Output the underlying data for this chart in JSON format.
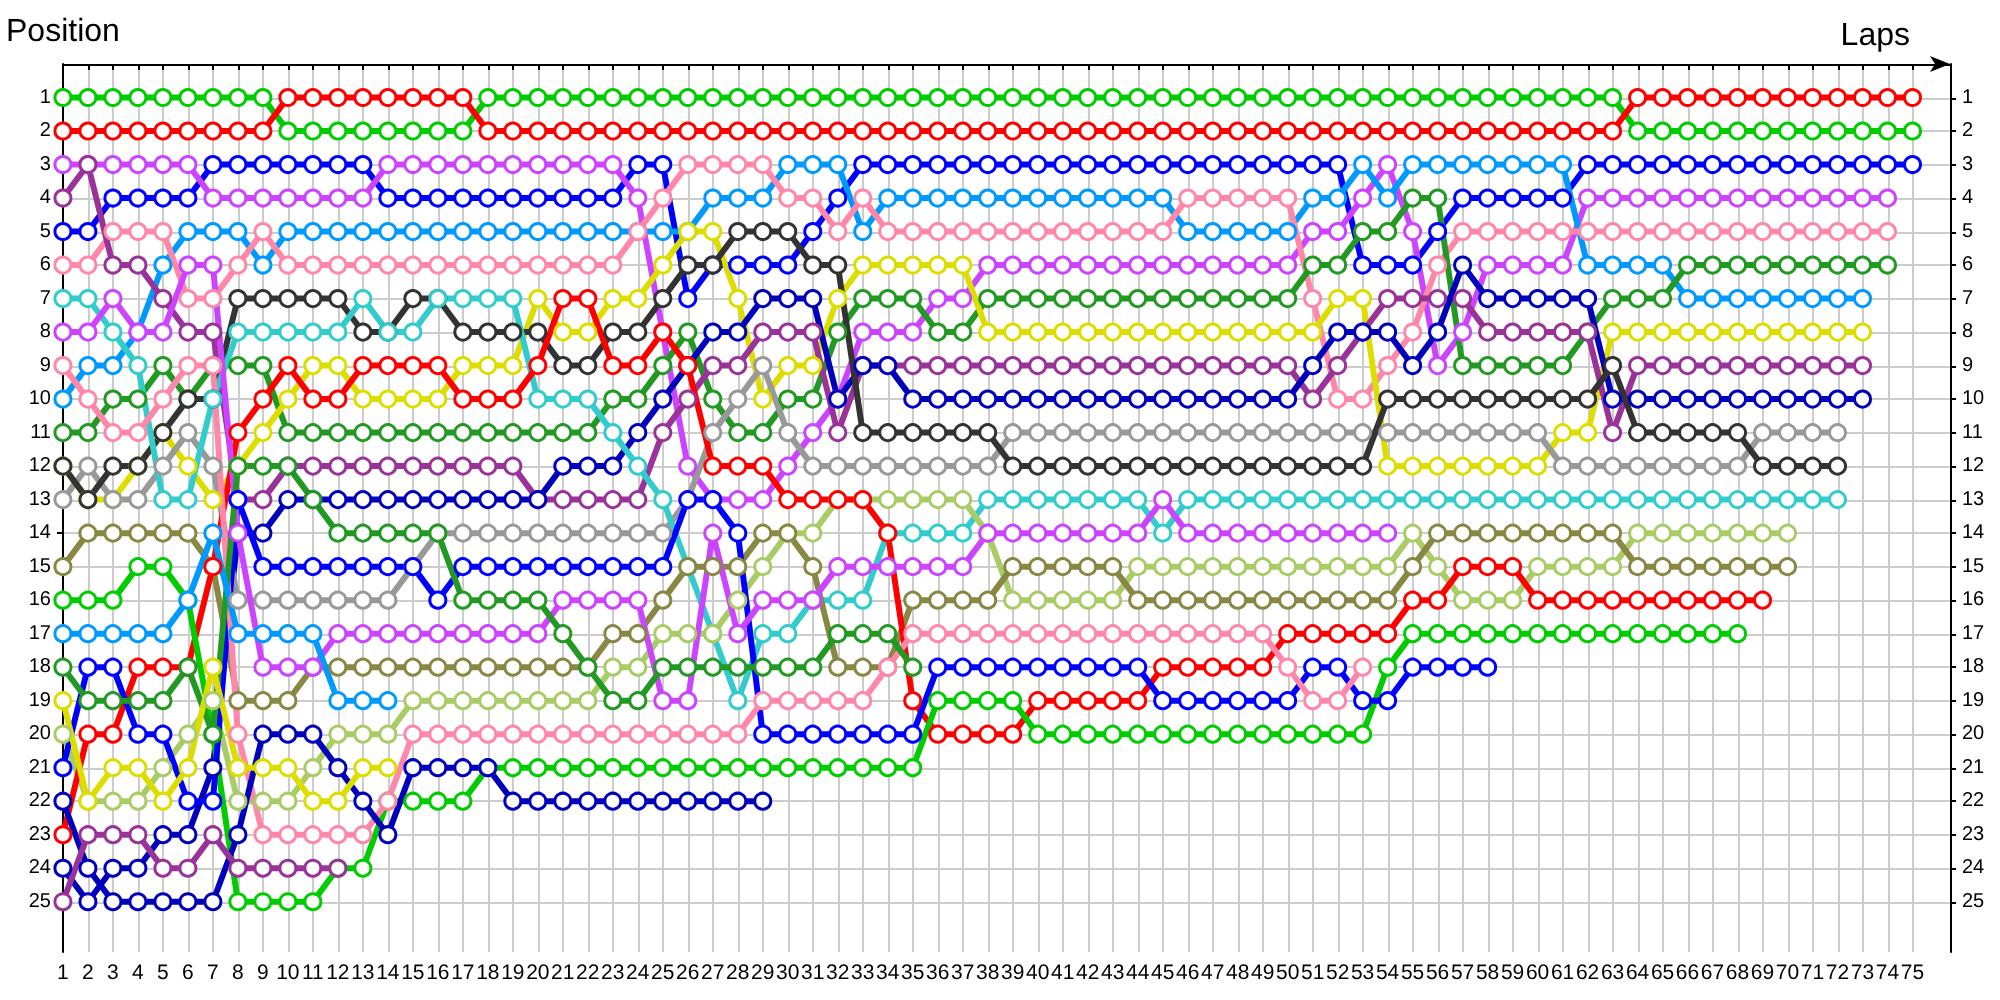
{
  "chart_data": {
    "type": "line",
    "xlabel": "Laps",
    "ylabel": "Position",
    "x": [
      1,
      2,
      3,
      4,
      5,
      6,
      7,
      8,
      9,
      10,
      11,
      12,
      13,
      14,
      15,
      16,
      17,
      18,
      19,
      20,
      21,
      22,
      23,
      24,
      25,
      26,
      27,
      28,
      29,
      30,
      31,
      32,
      33,
      34,
      35,
      36,
      37,
      38,
      39,
      40,
      41,
      42,
      43,
      44,
      45,
      46,
      47,
      48,
      49,
      50,
      51,
      52,
      53,
      54,
      55,
      56,
      57,
      58,
      59,
      60,
      61,
      62,
      63,
      64,
      65,
      66,
      67,
      68,
      69,
      70,
      71,
      72,
      73,
      74,
      75
    ],
    "xlim": [
      1,
      76.5
    ],
    "xticks": [
      1,
      2,
      3,
      4,
      5,
      6,
      7,
      8,
      9,
      10,
      11,
      12,
      13,
      14,
      15,
      16,
      17,
      18,
      19,
      20,
      21,
      22,
      23,
      24,
      25,
      26,
      27,
      28,
      29,
      30,
      31,
      32,
      33,
      34,
      35,
      36,
      37,
      38,
      39,
      40,
      41,
      42,
      43,
      44,
      45,
      46,
      47,
      48,
      49,
      50,
      51,
      52,
      53,
      54,
      55,
      56,
      57,
      58,
      59,
      60,
      61,
      62,
      63,
      64,
      65,
      66,
      67,
      68,
      69,
      70,
      71,
      72,
      73,
      74,
      75
    ],
    "ylim": [
      26.5,
      0
    ],
    "yticks": [
      1,
      2,
      3,
      4,
      5,
      6,
      7,
      8,
      9,
      10,
      11,
      12,
      13,
      14,
      15,
      16,
      17,
      18,
      19,
      20,
      21,
      22,
      23,
      24,
      25
    ],
    "y2lim": [
      26.5,
      0
    ],
    "y2ticks": [
      1,
      2,
      3,
      4,
      5,
      6,
      7,
      8,
      9,
      10,
      11,
      12,
      13,
      14,
      15,
      16,
      17,
      18,
      19,
      20,
      21,
      22,
      23,
      24,
      25
    ],
    "grid": true,
    "marker": "circle",
    "line_style": "solid",
    "series": [
      {
        "color": "#00cc00",
        "values": [
          1,
          1,
          1,
          1,
          1,
          1,
          1,
          1,
          1,
          2,
          2,
          2,
          2,
          2,
          2,
          2,
          2,
          1,
          1,
          1,
          1,
          1,
          1,
          1,
          1,
          1,
          1,
          1,
          1,
          1,
          1,
          1,
          1,
          1,
          1,
          1,
          1,
          1,
          1,
          1,
          1,
          1,
          1,
          1,
          1,
          1,
          1,
          1,
          1,
          1,
          1,
          1,
          1,
          1,
          1,
          1,
          1,
          1,
          1,
          1,
          1,
          1,
          1,
          2,
          2,
          2,
          2,
          2,
          2,
          2,
          2,
          2,
          2,
          2,
          2
        ]
      },
      {
        "color": "#ff0000",
        "values": [
          2,
          2,
          2,
          2,
          2,
          2,
          2,
          2,
          2,
          1,
          1,
          1,
          1,
          1,
          1,
          1,
          1,
          2,
          2,
          2,
          2,
          2,
          2,
          2,
          2,
          2,
          2,
          2,
          2,
          2,
          2,
          2,
          2,
          2,
          2,
          2,
          2,
          2,
          2,
          2,
          2,
          2,
          2,
          2,
          2,
          2,
          2,
          2,
          2,
          2,
          2,
          2,
          2,
          2,
          2,
          2,
          2,
          2,
          2,
          2,
          2,
          2,
          2,
          1,
          1,
          1,
          1,
          1,
          1,
          1,
          1,
          1,
          1,
          1,
          1
        ]
      },
      {
        "color": "#0000ff",
        "values": [
          5,
          5,
          4,
          4,
          4,
          4,
          3,
          3,
          3,
          3,
          3,
          3,
          3,
          4,
          4,
          4,
          4,
          4,
          4,
          4,
          4,
          4,
          4,
          3,
          3,
          7,
          6,
          6,
          6,
          6,
          5,
          4,
          3,
          3,
          3,
          3,
          3,
          3,
          3,
          3,
          3,
          3,
          3,
          3,
          3,
          3,
          3,
          3,
          3,
          3,
          3,
          3,
          6,
          6,
          6,
          5,
          4,
          4,
          4,
          4,
          4,
          3,
          3,
          3,
          3,
          3,
          3,
          3,
          3,
          3,
          3,
          3,
          3,
          3,
          3
        ]
      },
      {
        "color": "#cc44ff",
        "values": [
          3,
          3,
          3,
          3,
          3,
          3,
          4,
          4,
          4,
          4,
          4,
          4,
          4,
          3,
          3,
          3,
          3,
          3,
          3,
          3,
          3,
          3,
          3,
          4,
          8,
          12,
          13,
          13,
          13,
          12,
          11,
          10,
          8,
          8,
          8,
          7,
          7,
          6,
          6,
          6,
          6,
          6,
          6,
          6,
          6,
          6,
          6,
          6,
          6,
          6,
          5,
          5,
          4,
          3,
          5,
          9,
          8,
          6,
          6,
          6,
          6,
          4,
          4,
          4,
          4,
          4,
          4,
          4,
          4,
          4,
          4,
          4,
          4,
          4,
          null
        ]
      },
      {
        "color": "#0099ff",
        "values": [
          10,
          9,
          9,
          8,
          6,
          5,
          5,
          5,
          6,
          5,
          5,
          5,
          5,
          5,
          5,
          5,
          5,
          5,
          5,
          5,
          5,
          5,
          5,
          5,
          5,
          5,
          4,
          4,
          4,
          3,
          3,
          3,
          5,
          4,
          4,
          4,
          4,
          4,
          4,
          4,
          4,
          4,
          4,
          4,
          4,
          5,
          5,
          5,
          5,
          5,
          4,
          4,
          3,
          4,
          3,
          3,
          3,
          3,
          3,
          3,
          3,
          6,
          6,
          6,
          6,
          7,
          7,
          7,
          7,
          7,
          7,
          7,
          7,
          null,
          null
        ]
      },
      {
        "color": "#ff88aa",
        "values": [
          6,
          6,
          5,
          5,
          5,
          7,
          7,
          6,
          5,
          6,
          6,
          6,
          6,
          6,
          6,
          6,
          6,
          6,
          6,
          6,
          6,
          6,
          6,
          5,
          4,
          3,
          3,
          3,
          3,
          4,
          4,
          5,
          4,
          5,
          5,
          5,
          5,
          5,
          5,
          5,
          5,
          5,
          5,
          5,
          5,
          4,
          4,
          4,
          4,
          4,
          7,
          10,
          10,
          9,
          8,
          6,
          5,
          5,
          5,
          5,
          5,
          5,
          5,
          5,
          5,
          5,
          5,
          5,
          5,
          5,
          5,
          5,
          5,
          5,
          null
        ]
      },
      {
        "color": "#229922",
        "values": [
          11,
          11,
          10,
          10,
          9,
          10,
          9,
          9,
          9,
          11,
          11,
          11,
          11,
          11,
          11,
          11,
          11,
          11,
          11,
          11,
          11,
          11,
          10,
          10,
          9,
          8,
          10,
          11,
          11,
          10,
          10,
          8,
          7,
          7,
          7,
          8,
          8,
          7,
          7,
          7,
          7,
          7,
          7,
          7,
          7,
          7,
          7,
          7,
          7,
          7,
          6,
          6,
          5,
          5,
          4,
          4,
          9,
          9,
          9,
          9,
          9,
          8,
          7,
          7,
          7,
          6,
          6,
          6,
          6,
          6,
          6,
          6,
          6,
          6,
          null
        ]
      },
      {
        "color": "#dddd00",
        "values": [
          12,
          13,
          13,
          12,
          11,
          12,
          13,
          12,
          11,
          10,
          9,
          9,
          10,
          10,
          10,
          10,
          9,
          9,
          9,
          7,
          8,
          8,
          7,
          7,
          6,
          5,
          5,
          7,
          10,
          9,
          9,
          7,
          6,
          6,
          6,
          6,
          6,
          8,
          8,
          8,
          8,
          8,
          8,
          8,
          8,
          8,
          8,
          8,
          8,
          8,
          8,
          7,
          7,
          12,
          12,
          12,
          12,
          12,
          12,
          12,
          11,
          11,
          8,
          8,
          8,
          8,
          8,
          8,
          8,
          8,
          8,
          8,
          8,
          null,
          null
        ]
      },
      {
        "color": "#993399",
        "values": [
          4,
          3,
          6,
          6,
          7,
          8,
          8,
          13,
          13,
          12,
          12,
          12,
          12,
          12,
          12,
          12,
          12,
          12,
          12,
          13,
          13,
          13,
          13,
          13,
          11,
          10,
          9,
          9,
          8,
          8,
          8,
          11,
          9,
          9,
          9,
          9,
          9,
          9,
          9,
          9,
          9,
          9,
          9,
          9,
          9,
          9,
          9,
          9,
          9,
          9,
          10,
          9,
          8,
          7,
          7,
          7,
          7,
          8,
          8,
          8,
          8,
          8,
          11,
          9,
          9,
          9,
          9,
          9,
          9,
          9,
          9,
          9,
          9,
          null,
          null
        ]
      },
      {
        "color": "#0000bb",
        "values": [
          24,
          25,
          24,
          24,
          23,
          23,
          21,
          14,
          14,
          13,
          13,
          13,
          13,
          13,
          13,
          13,
          13,
          13,
          13,
          13,
          12,
          12,
          12,
          11,
          10,
          9,
          8,
          8,
          7,
          7,
          7,
          10,
          9,
          9,
          10,
          10,
          10,
          10,
          10,
          10,
          10,
          10,
          10,
          10,
          10,
          10,
          10,
          10,
          10,
          10,
          9,
          8,
          8,
          8,
          9,
          8,
          6,
          7,
          7,
          7,
          7,
          7,
          10,
          10,
          10,
          10,
          10,
          10,
          10,
          10,
          10,
          10,
          10,
          null,
          null
        ]
      },
      {
        "color": "#999999",
        "values": [
          13,
          12,
          13,
          13,
          12,
          11,
          12,
          16,
          16,
          16,
          16,
          16,
          16,
          16,
          15,
          14,
          14,
          14,
          14,
          14,
          14,
          14,
          14,
          14,
          14,
          13,
          11,
          10,
          9,
          11,
          12,
          12,
          12,
          12,
          12,
          12,
          12,
          12,
          11,
          11,
          11,
          11,
          11,
          11,
          11,
          11,
          11,
          11,
          11,
          11,
          11,
          11,
          11,
          11,
          11,
          11,
          11,
          11,
          11,
          11,
          12,
          12,
          12,
          12,
          12,
          12,
          12,
          12,
          11,
          11,
          11,
          11,
          null,
          null,
          null
        ]
      },
      {
        "color": "#333333",
        "values": [
          12,
          13,
          12,
          12,
          11,
          10,
          10,
          7,
          7,
          7,
          7,
          7,
          8,
          8,
          7,
          7,
          8,
          8,
          8,
          8,
          9,
          9,
          8,
          8,
          7,
          6,
          6,
          5,
          5,
          5,
          6,
          6,
          11,
          11,
          11,
          11,
          11,
          11,
          12,
          12,
          12,
          12,
          12,
          12,
          12,
          12,
          12,
          12,
          12,
          12,
          12,
          12,
          12,
          10,
          10,
          10,
          10,
          10,
          10,
          10,
          10,
          10,
          9,
          11,
          11,
          11,
          11,
          11,
          12,
          12,
          12,
          12,
          null,
          null,
          null
        ]
      },
      {
        "color": "#33cccc",
        "values": [
          7,
          7,
          8,
          9,
          13,
          13,
          10,
          8,
          8,
          8,
          8,
          8,
          7,
          8,
          8,
          7,
          7,
          7,
          7,
          10,
          10,
          10,
          11,
          12,
          13,
          15,
          17,
          19,
          17,
          17,
          16,
          16,
          16,
          14,
          14,
          14,
          14,
          13,
          13,
          13,
          13,
          13,
          13,
          13,
          14,
          13,
          13,
          13,
          13,
          13,
          13,
          13,
          13,
          13,
          13,
          13,
          13,
          13,
          13,
          13,
          13,
          13,
          13,
          13,
          13,
          13,
          13,
          13,
          13,
          13,
          13,
          13,
          null,
          null,
          null
        ]
      },
      {
        "color": "#aacc66",
        "values": [
          20,
          22,
          22,
          22,
          21,
          20,
          19,
          22,
          22,
          22,
          21,
          20,
          20,
          20,
          19,
          19,
          19,
          19,
          19,
          19,
          19,
          19,
          18,
          18,
          17,
          17,
          17,
          16,
          15,
          14,
          14,
          13,
          13,
          13,
          13,
          13,
          13,
          14,
          16,
          16,
          16,
          16,
          16,
          15,
          15,
          15,
          15,
          15,
          15,
          15,
          15,
          15,
          15,
          15,
          14,
          15,
          16,
          16,
          16,
          15,
          15,
          15,
          15,
          14,
          14,
          14,
          14,
          14,
          14,
          14,
          null,
          null,
          null,
          null,
          null
        ]
      },
      {
        "color": "#888844",
        "values": [
          15,
          14,
          14,
          14,
          14,
          14,
          15,
          19,
          19,
          19,
          18,
          18,
          18,
          18,
          18,
          18,
          18,
          18,
          18,
          18,
          18,
          18,
          17,
          17,
          16,
          15,
          15,
          15,
          14,
          14,
          15,
          18,
          18,
          18,
          16,
          16,
          16,
          16,
          15,
          15,
          15,
          15,
          15,
          16,
          16,
          16,
          16,
          16,
          16,
          16,
          16,
          16,
          16,
          16,
          15,
          14,
          14,
          14,
          14,
          14,
          14,
          14,
          14,
          15,
          15,
          15,
          15,
          15,
          15,
          15,
          null,
          null,
          null,
          null,
          null
        ]
      },
      {
        "color": "#ff0000",
        "values": [
          23,
          20,
          20,
          18,
          18,
          18,
          15,
          11,
          10,
          9,
          10,
          10,
          9,
          9,
          9,
          9,
          10,
          10,
          10,
          9,
          7,
          7,
          9,
          9,
          8,
          9,
          12,
          12,
          12,
          13,
          13,
          13,
          13,
          14,
          19,
          20,
          20,
          20,
          20,
          19,
          19,
          19,
          19,
          19,
          18,
          18,
          18,
          18,
          18,
          17,
          17,
          17,
          17,
          17,
          16,
          16,
          15,
          15,
          15,
          16,
          16,
          16,
          16,
          16,
          16,
          16,
          16,
          16,
          16,
          null,
          null,
          null,
          null,
          null,
          null
        ]
      },
      {
        "color": "#00cc00",
        "values": [
          16,
          16,
          16,
          15,
          15,
          16,
          20,
          25,
          25,
          25,
          25,
          24,
          24,
          22,
          22,
          22,
          22,
          21,
          21,
          21,
          21,
          21,
          21,
          21,
          21,
          21,
          21,
          21,
          21,
          21,
          21,
          21,
          21,
          21,
          21,
          19,
          19,
          19,
          19,
          20,
          20,
          20,
          20,
          20,
          20,
          20,
          20,
          20,
          20,
          20,
          20,
          20,
          20,
          18,
          17,
          17,
          17,
          17,
          17,
          17,
          17,
          17,
          17,
          17,
          17,
          17,
          17,
          17,
          null,
          null,
          null,
          null,
          null,
          null,
          null
        ]
      },
      {
        "color": "#0000ff",
        "values": [
          21,
          18,
          18,
          20,
          20,
          22,
          22,
          13,
          15,
          15,
          15,
          15,
          15,
          15,
          15,
          16,
          15,
          15,
          15,
          15,
          15,
          15,
          15,
          15,
          15,
          13,
          13,
          14,
          20,
          20,
          20,
          20,
          20,
          20,
          20,
          18,
          18,
          18,
          18,
          18,
          18,
          18,
          18,
          18,
          19,
          19,
          19,
          19,
          19,
          19,
          18,
          18,
          19,
          19,
          18,
          18,
          18,
          18,
          null,
          null,
          null,
          null,
          null,
          null,
          null,
          null,
          null,
          null,
          null,
          null,
          null,
          null,
          null,
          null,
          null
        ]
      },
      {
        "color": "#ff88aa",
        "values": [
          9,
          10,
          11,
          11,
          10,
          9,
          9,
          20,
          23,
          23,
          23,
          23,
          23,
          22,
          20,
          20,
          20,
          20,
          20,
          20,
          20,
          20,
          20,
          20,
          20,
          20,
          20,
          20,
          19,
          19,
          19,
          19,
          19,
          18,
          17,
          17,
          17,
          17,
          17,
          17,
          17,
          17,
          17,
          17,
          17,
          17,
          17,
          17,
          17,
          18,
          19,
          19,
          18,
          null,
          null,
          null,
          null,
          null,
          null,
          null,
          null,
          null,
          null,
          null,
          null,
          null,
          null,
          null,
          null,
          null,
          null,
          null,
          null,
          null,
          null
        ]
      },
      {
        "color": "#cc44ff",
        "values": [
          8,
          8,
          7,
          8,
          8,
          6,
          6,
          14,
          18,
          18,
          18,
          17,
          17,
          17,
          17,
          17,
          17,
          17,
          17,
          17,
          16,
          16,
          16,
          16,
          19,
          19,
          14,
          17,
          16,
          16,
          16,
          15,
          15,
          15,
          15,
          15,
          15,
          14,
          14,
          14,
          14,
          14,
          14,
          14,
          13,
          14,
          14,
          14,
          14,
          14,
          14,
          14,
          14,
          14,
          null,
          null,
          null,
          null,
          null,
          null,
          null,
          null,
          null,
          null,
          null,
          null,
          null,
          null,
          null,
          null,
          null,
          null,
          null,
          null,
          null
        ]
      },
      {
        "color": "#229922",
        "values": [
          18,
          19,
          19,
          19,
          19,
          18,
          20,
          12,
          12,
          12,
          13,
          14,
          14,
          14,
          14,
          14,
          16,
          16,
          16,
          16,
          17,
          18,
          19,
          19,
          18,
          18,
          18,
          18,
          18,
          18,
          18,
          17,
          17,
          17,
          18,
          null,
          null,
          null,
          null,
          null,
          null,
          null,
          null,
          null,
          null,
          null,
          null,
          null,
          null,
          null,
          null,
          null,
          null,
          null,
          null,
          null,
          null,
          null,
          null,
          null,
          null,
          null,
          null,
          null,
          null,
          null,
          null,
          null,
          null,
          null,
          null,
          null,
          null,
          null,
          null
        ]
      },
      {
        "color": "#0000bb",
        "values": [
          22,
          24,
          25,
          25,
          25,
          25,
          25,
          23,
          20,
          20,
          20,
          21,
          22,
          23,
          21,
          21,
          21,
          21,
          22,
          22,
          22,
          22,
          22,
          22,
          22,
          22,
          22,
          22,
          22,
          null,
          null,
          null,
          null,
          null,
          null,
          null,
          null,
          null,
          null,
          null,
          null,
          null,
          null,
          null,
          null,
          null,
          null,
          null,
          null,
          null,
          null,
          null,
          null,
          null,
          null,
          null,
          null,
          null,
          null,
          null,
          null,
          null,
          null,
          null,
          null,
          null,
          null,
          null,
          null,
          null,
          null,
          null,
          null,
          null,
          null
        ]
      },
      {
        "color": "#0099ff",
        "values": [
          17,
          17,
          17,
          17,
          17,
          16,
          14,
          17,
          17,
          17,
          17,
          19,
          19,
          19,
          null,
          null,
          null,
          null,
          null,
          null,
          null,
          null,
          null,
          null,
          null,
          null,
          null,
          null,
          null,
          null,
          null,
          null,
          null,
          null,
          null,
          null,
          null,
          null,
          null,
          null,
          null,
          null,
          null,
          null,
          null,
          null,
          null,
          null,
          null,
          null,
          null,
          null,
          null,
          null,
          null,
          null,
          null,
          null,
          null,
          null,
          null,
          null,
          null,
          null,
          null,
          null,
          null,
          null,
          null,
          null,
          null,
          null,
          null,
          null,
          null
        ]
      },
      {
        "color": "#993399",
        "values": [
          25,
          23,
          23,
          23,
          24,
          24,
          23,
          24,
          24,
          24,
          24,
          24,
          null,
          null,
          null,
          null,
          null,
          null,
          null,
          null,
          null,
          null,
          null,
          null,
          null,
          null,
          null,
          null,
          null,
          null,
          null,
          null,
          null,
          null,
          null,
          null,
          null,
          null,
          null,
          null,
          null,
          null,
          null,
          null,
          null,
          null,
          null,
          null,
          null,
          null,
          null,
          null,
          null,
          null,
          null,
          null,
          null,
          null,
          null,
          null,
          null,
          null,
          null,
          null,
          null,
          null,
          null,
          null,
          null,
          null,
          null,
          null,
          null,
          null,
          null
        ]
      },
      {
        "color": "#dddd00",
        "values": [
          19,
          22,
          21,
          21,
          22,
          21,
          18,
          21,
          21,
          21,
          22,
          22,
          21,
          21,
          null,
          null,
          null,
          null,
          null,
          null,
          null,
          null,
          null,
          null,
          null,
          null,
          null,
          null,
          null,
          null,
          null,
          null,
          null,
          null,
          null,
          null,
          null,
          null,
          null,
          null,
          null,
          null,
          null,
          null,
          null,
          null,
          null,
          null,
          null,
          null,
          null,
          null,
          null,
          null,
          null,
          null,
          null,
          null,
          null,
          null,
          null,
          null,
          null,
          null,
          null,
          null,
          null,
          null,
          null,
          null,
          null,
          null,
          null,
          null,
          null
        ]
      }
    ]
  }
}
